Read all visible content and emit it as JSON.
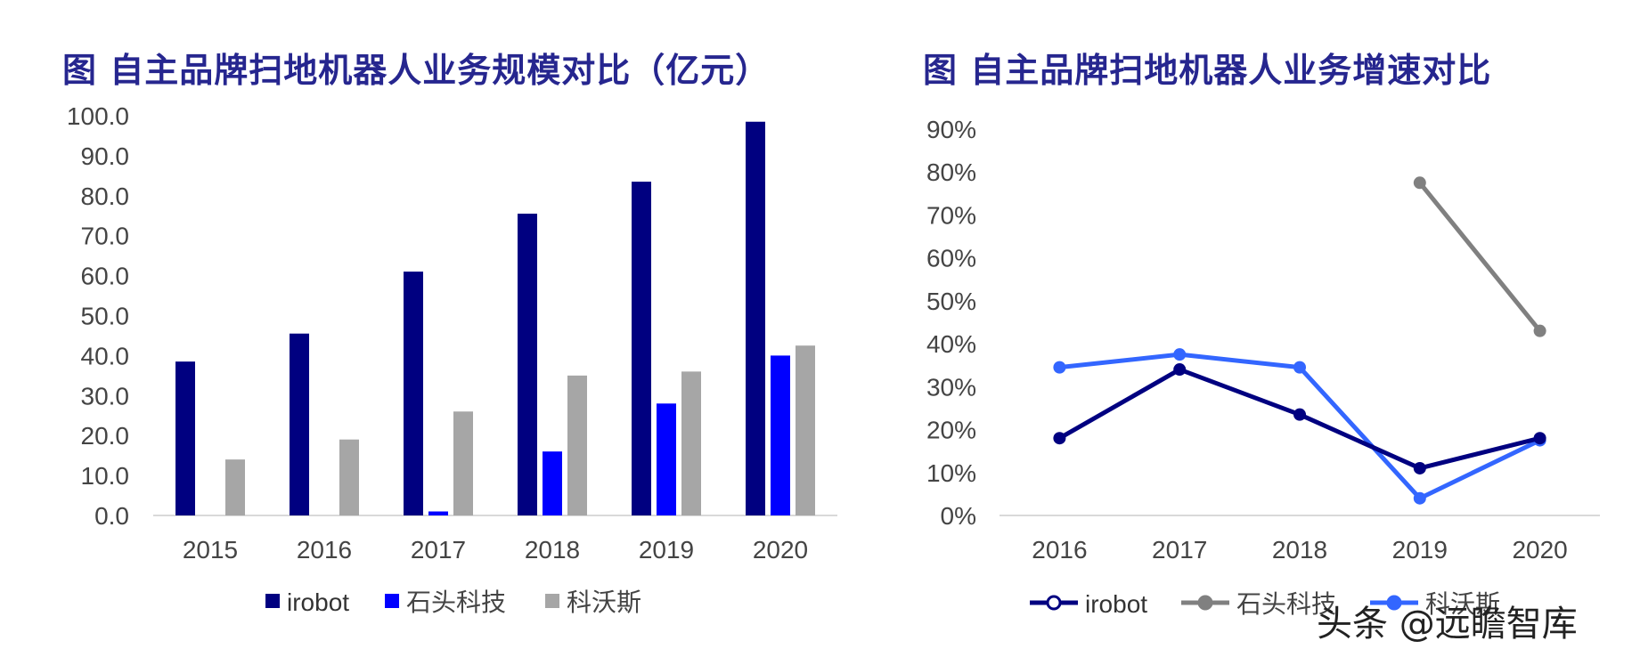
{
  "titles": {
    "left": "图 自主品牌扫地机器人业务规模对比（亿元）",
    "right": "图 自主品牌扫地机器人业务增速对比"
  },
  "watermark": "头条 @远瞻智库",
  "chart_data": [
    {
      "type": "bar",
      "title": "图 自主品牌扫地机器人业务规模对比（亿元）",
      "categories": [
        "2015",
        "2016",
        "2017",
        "2018",
        "2019",
        "2020"
      ],
      "series": [
        {
          "name": "irobot",
          "color": "#000080",
          "values": [
            38.5,
            45.5,
            61.0,
            75.5,
            83.5,
            98.5
          ]
        },
        {
          "name": "石头科技",
          "color": "#0000ff",
          "values": [
            null,
            null,
            1.0,
            16.0,
            28.0,
            40.0
          ]
        },
        {
          "name": "科沃斯",
          "color": "#a6a6a6",
          "values": [
            14.0,
            19.0,
            26.0,
            35.0,
            36.0,
            42.5
          ]
        }
      ],
      "ylim": [
        0,
        100
      ],
      "yticks": [
        "0.0",
        "10.0",
        "20.0",
        "30.0",
        "40.0",
        "50.0",
        "60.0",
        "70.0",
        "80.0",
        "90.0",
        "100.0"
      ],
      "legend": "bottom",
      "grid": false
    },
    {
      "type": "line",
      "title": "图 自主品牌扫地机器人业务增速对比",
      "categories": [
        "2016",
        "2017",
        "2018",
        "2019",
        "2020"
      ],
      "series": [
        {
          "name": "irobot",
          "color": "#000080",
          "values": [
            18,
            34,
            23.5,
            11,
            18
          ]
        },
        {
          "name": "石头科技",
          "color": "#808080",
          "values": [
            null,
            null,
            null,
            77.5,
            43
          ]
        },
        {
          "name": "科沃斯",
          "color": "#3366ff",
          "values": [
            34.5,
            37.5,
            34.5,
            4,
            17.5
          ]
        }
      ],
      "ylim": [
        0,
        90
      ],
      "yticks": [
        "0%",
        "10%",
        "20%",
        "30%",
        "40%",
        "50%",
        "60%",
        "70%",
        "80%",
        "90%"
      ],
      "legend": "bottom",
      "grid": false
    }
  ]
}
